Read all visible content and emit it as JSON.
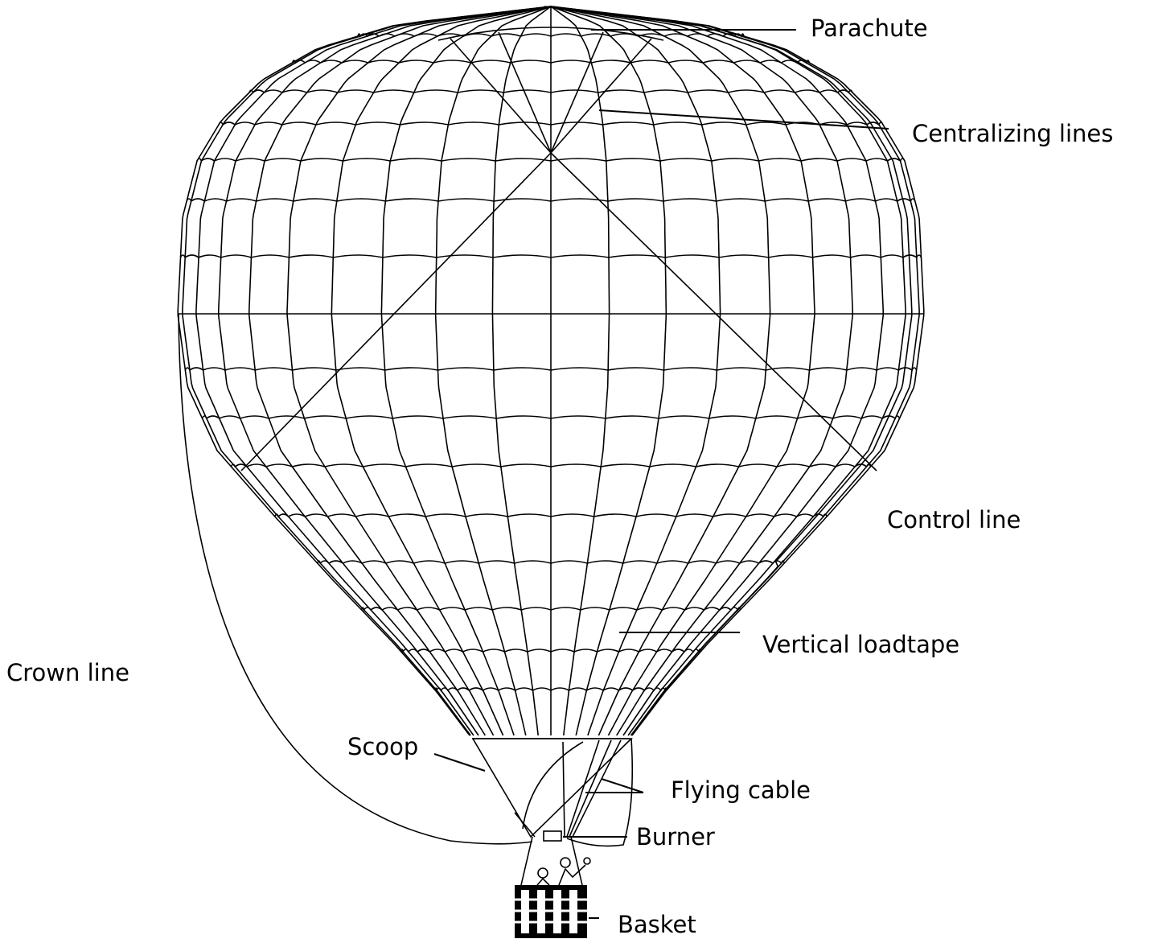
{
  "labels": [
    "Parachute",
    "Centralizing lines",
    "Control line",
    "Vertical loadtape",
    "Crown line",
    "Scoop",
    "Flying cable",
    "Burner",
    "Basket"
  ]
}
